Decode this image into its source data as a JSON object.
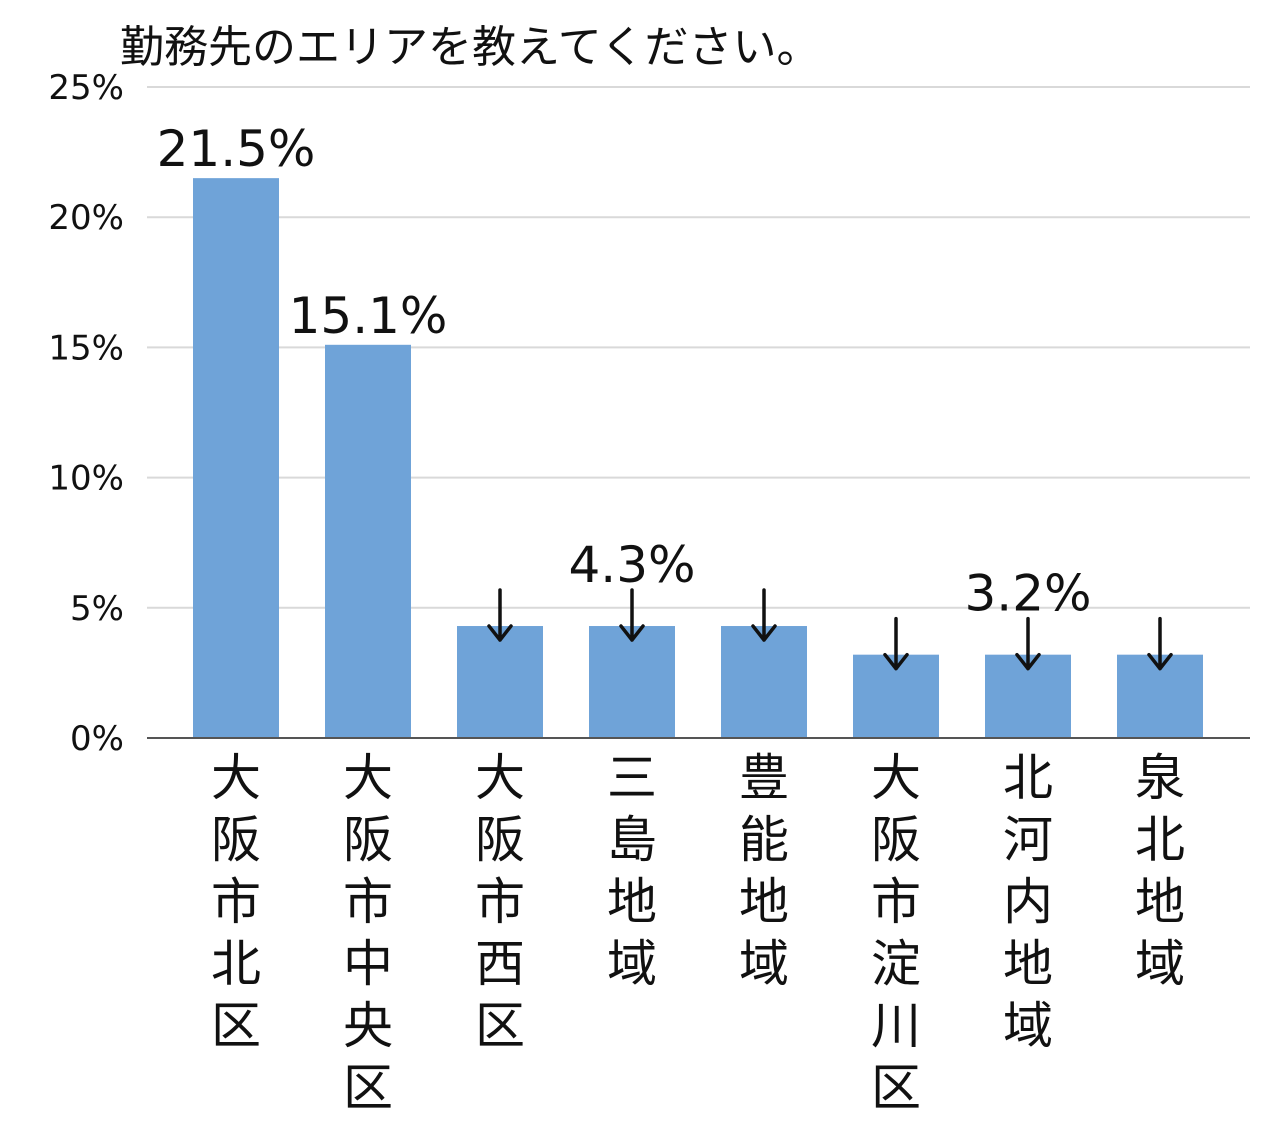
{
  "chart_data": {
    "type": "bar",
    "title": "勤務先のエリアを教えてください。",
    "categories": [
      "大阪市北区",
      "大阪市中央区",
      "大阪市西区",
      "三島地域",
      "豊能地域",
      "大阪市淀川区",
      "北河内地域",
      "泉北地域"
    ],
    "values": [
      21.5,
      15.1,
      4.3,
      4.3,
      4.3,
      3.2,
      3.2,
      3.2
    ],
    "value_unit": "%",
    "ylim": [
      0,
      25
    ],
    "yticks": [
      0,
      5,
      10,
      15,
      20,
      25
    ],
    "ytick_labels": [
      "0%",
      "5%",
      "10%",
      "15%",
      "20%",
      "25%"
    ],
    "data_labels": [
      "21.5%",
      "15.1%",
      "",
      "4.3%",
      "",
      "",
      "3.2%",
      ""
    ],
    "same_value_arrows": [
      false,
      false,
      true,
      true,
      true,
      true,
      true,
      true
    ],
    "bar_color": "#6fa3d8",
    "grid": true,
    "legend": "none"
  }
}
